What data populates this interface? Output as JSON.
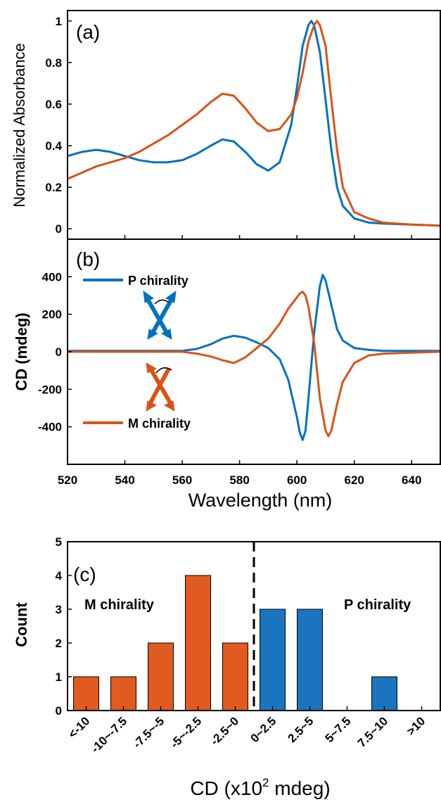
{
  "colors": {
    "blue": "#0072BD",
    "orange": "#D95319",
    "axis": "#000000"
  },
  "chart_data": [
    {
      "type": "line",
      "panel_label": "(a)",
      "ylabel": "Normalized Absorbance",
      "xlim": [
        520,
        650
      ],
      "ylim": [
        -0.05,
        1.05
      ],
      "yticks": [
        0,
        0.2,
        0.4,
        0.6,
        0.8,
        1
      ],
      "ytick_labels": [
        "0",
        "0.2",
        "0.4",
        "0.6",
        "0.8",
        "1"
      ],
      "grid": false,
      "series": [
        {
          "color": "#0072BD",
          "x": [
            520,
            525,
            530,
            535,
            540,
            545,
            550,
            555,
            560,
            565,
            570,
            574,
            578,
            582,
            586,
            590,
            594,
            598,
            600,
            602,
            604,
            605,
            606,
            608,
            610,
            612,
            614,
            616,
            620,
            625,
            630,
            640,
            650
          ],
          "y": [
            0.35,
            0.37,
            0.38,
            0.37,
            0.35,
            0.33,
            0.32,
            0.32,
            0.33,
            0.36,
            0.4,
            0.43,
            0.42,
            0.37,
            0.31,
            0.28,
            0.32,
            0.5,
            0.68,
            0.88,
            0.98,
            1.0,
            0.98,
            0.85,
            0.62,
            0.38,
            0.2,
            0.11,
            0.05,
            0.03,
            0.025,
            0.02,
            0.015
          ]
        },
        {
          "color": "#D95319",
          "x": [
            520,
            525,
            530,
            535,
            540,
            545,
            550,
            555,
            560,
            565,
            570,
            574,
            578,
            582,
            586,
            590,
            594,
            598,
            600,
            602,
            604,
            606,
            607,
            608,
            610,
            612,
            614,
            616,
            620,
            625,
            630,
            640,
            650
          ],
          "y": [
            0.24,
            0.27,
            0.3,
            0.32,
            0.34,
            0.37,
            0.41,
            0.45,
            0.5,
            0.55,
            0.61,
            0.65,
            0.64,
            0.58,
            0.51,
            0.47,
            0.48,
            0.55,
            0.63,
            0.75,
            0.9,
            0.98,
            1.0,
            0.98,
            0.88,
            0.62,
            0.38,
            0.2,
            0.08,
            0.05,
            0.03,
            0.02,
            0.015
          ]
        }
      ]
    },
    {
      "type": "line",
      "panel_label": "(b)",
      "ylabel": "CD (mdeg)",
      "xlabel": "Wavelength (nm)",
      "xlim": [
        520,
        650
      ],
      "ylim": [
        -600,
        600
      ],
      "xticks": [
        520,
        540,
        560,
        580,
        600,
        620,
        640
      ],
      "yticks": [
        -400,
        -200,
        0,
        200,
        400
      ],
      "grid": false,
      "legend": [
        {
          "label": "P chirality",
          "color": "#0072BD",
          "placement": "upper-left"
        },
        {
          "label": "M chirality",
          "color": "#D95319",
          "placement": "lower-left"
        }
      ],
      "series": [
        {
          "color": "#0072BD",
          "x": [
            520,
            530,
            540,
            550,
            560,
            565,
            570,
            574,
            578,
            582,
            586,
            590,
            594,
            597,
            600,
            601,
            602,
            603,
            604,
            606,
            608,
            609,
            610,
            612,
            614,
            616,
            620,
            625,
            630,
            640,
            650
          ],
          "y": [
            5,
            5,
            5,
            5,
            5,
            15,
            40,
            70,
            85,
            75,
            50,
            20,
            -40,
            -150,
            -350,
            -430,
            -470,
            -420,
            -250,
            100,
            350,
            410,
            380,
            250,
            120,
            60,
            20,
            10,
            5,
            5,
            5
          ]
        },
        {
          "color": "#D95319",
          "x": [
            520,
            530,
            540,
            550,
            560,
            565,
            570,
            574,
            578,
            582,
            586,
            590,
            594,
            597,
            600,
            601,
            602,
            603,
            604,
            606,
            608,
            610,
            611,
            612,
            614,
            616,
            620,
            625,
            630,
            640,
            650
          ],
          "y": [
            0,
            0,
            0,
            0,
            0,
            -10,
            -25,
            -45,
            -60,
            -30,
            20,
            70,
            150,
            230,
            290,
            310,
            320,
            300,
            240,
            50,
            -250,
            -420,
            -450,
            -420,
            -280,
            -160,
            -60,
            -20,
            -10,
            -5,
            0
          ]
        }
      ]
    },
    {
      "type": "bar",
      "panel_label": "(c)",
      "ylabel": "Count",
      "xlabel_pre": "CD (x10",
      "xlabel_sup": "2",
      "xlabel_post": " mdeg)",
      "ylim": [
        0,
        5
      ],
      "yticks": [
        0,
        1,
        2,
        3,
        4,
        5
      ],
      "categories": [
        "<-10",
        "-10~-7.5",
        "-7.5~-5",
        "-5~-2.5",
        "-2.5~0",
        "0~2.5",
        "2.5~5",
        "5~7.5",
        "7.5~10",
        ">10"
      ],
      "values": [
        1,
        1,
        2,
        4,
        2,
        3,
        3,
        0,
        1,
        0
      ],
      "bar_colors": [
        "#E15A1F",
        "#E15A1F",
        "#E15A1F",
        "#E15A1F",
        "#E15A1F",
        "#1A74BE",
        "#1A74BE",
        "#1A74BE",
        "#1A74BE",
        "#1A74BE"
      ],
      "annotations": [
        {
          "text": "M chirality",
          "color": "#E15A1F"
        },
        {
          "text": "P chirality",
          "color": "#1A74BE"
        }
      ],
      "divider": "dashed line at 0"
    }
  ]
}
